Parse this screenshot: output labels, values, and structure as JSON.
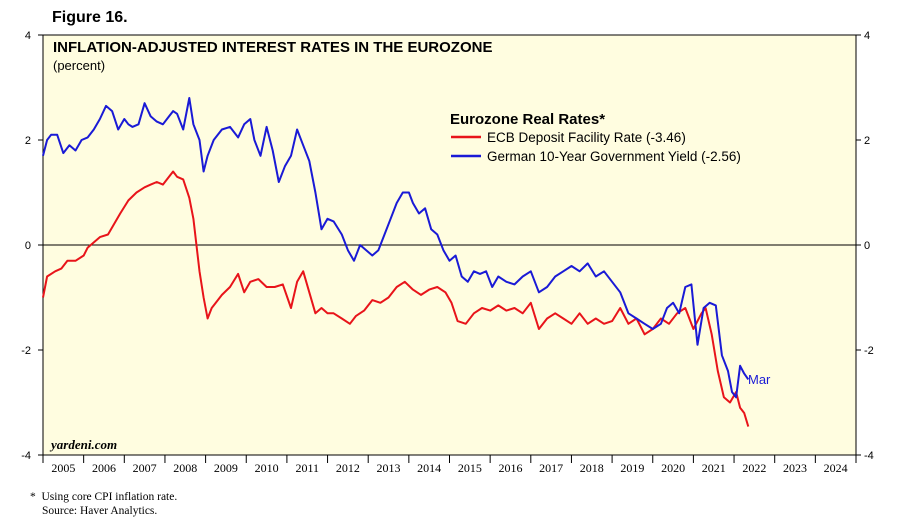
{
  "figure_label": "Figure 16.",
  "footnote": [
    "*  Using core CPI inflation rate.",
    "Source: Haver Analytics."
  ],
  "colors": {
    "ecb": "#e8141a",
    "german": "#1a1ad6",
    "background": "#fffde0"
  },
  "chart_data": {
    "type": "line",
    "title": "INFLATION-ADJUSTED INTEREST RATES IN THE EUROZONE",
    "subtitle": "(percent)",
    "legend_title": "Eurozone Real Rates*",
    "legend_position": "top-right",
    "watermark": "yardeni.com",
    "ylim": [
      -4,
      4
    ],
    "yticks": [
      4,
      2,
      0,
      -2,
      -4
    ],
    "xlim": [
      2004.9,
      2024.9
    ],
    "x_tick_labels": [
      "2005",
      "2006",
      "2007",
      "2008",
      "2009",
      "2010",
      "2011",
      "2012",
      "2013",
      "2014",
      "2015",
      "2016",
      "2017",
      "2018",
      "2019",
      "2020",
      "2021",
      "2022",
      "2023",
      "2024"
    ],
    "zero_line": true,
    "annotation": "Mar",
    "series": [
      {
        "name": "ECB Deposit Facility Rate (-3.46)",
        "color": "#e8141a",
        "x": [
          2004.9,
          2005.0,
          2005.2,
          2005.35,
          2005.5,
          2005.7,
          2005.9,
          2006.0,
          2006.15,
          2006.3,
          2006.5,
          2006.65,
          2006.8,
          2007.0,
          2007.2,
          2007.4,
          2007.55,
          2007.7,
          2007.85,
          2008.0,
          2008.1,
          2008.2,
          2008.35,
          2008.5,
          2008.6,
          2008.75,
          2008.85,
          2008.95,
          2009.05,
          2009.15,
          2009.3,
          2009.5,
          2009.7,
          2009.85,
          2010.0,
          2010.2,
          2010.4,
          2010.6,
          2010.8,
          2011.0,
          2011.15,
          2011.3,
          2011.45,
          2011.6,
          2011.75,
          2011.9,
          2012.05,
          2012.25,
          2012.45,
          2012.6,
          2012.8,
          2013.0,
          2013.2,
          2013.4,
          2013.6,
          2013.8,
          2014.0,
          2014.2,
          2014.4,
          2014.6,
          2014.8,
          2014.95,
          2015.1,
          2015.3,
          2015.5,
          2015.7,
          2015.9,
          2016.1,
          2016.3,
          2016.5,
          2016.7,
          2016.9,
          2017.1,
          2017.3,
          2017.5,
          2017.7,
          2017.9,
          2018.1,
          2018.3,
          2018.5,
          2018.7,
          2018.9,
          2019.1,
          2019.3,
          2019.5,
          2019.7,
          2019.9,
          2020.1,
          2020.3,
          2020.5,
          2020.7,
          2020.9,
          2021.1,
          2021.2,
          2021.35,
          2021.5,
          2021.65,
          2021.8,
          2021.95,
          2022.05,
          2022.15,
          2022.25
        ],
        "values": [
          -1.0,
          -0.6,
          -0.5,
          -0.45,
          -0.3,
          -0.3,
          -0.2,
          -0.05,
          0.05,
          0.15,
          0.2,
          0.4,
          0.6,
          0.85,
          1.0,
          1.1,
          1.15,
          1.2,
          1.15,
          1.3,
          1.4,
          1.3,
          1.25,
          0.9,
          0.5,
          -0.5,
          -1.0,
          -1.4,
          -1.2,
          -1.1,
          -0.95,
          -0.8,
          -0.55,
          -0.9,
          -0.7,
          -0.65,
          -0.8,
          -0.8,
          -0.75,
          -1.2,
          -0.7,
          -0.5,
          -0.9,
          -1.3,
          -1.2,
          -1.3,
          -1.3,
          -1.4,
          -1.5,
          -1.35,
          -1.25,
          -1.05,
          -1.1,
          -1.0,
          -0.8,
          -0.7,
          -0.85,
          -0.95,
          -0.85,
          -0.8,
          -0.9,
          -1.1,
          -1.45,
          -1.5,
          -1.3,
          -1.2,
          -1.25,
          -1.15,
          -1.25,
          -1.2,
          -1.3,
          -1.1,
          -1.6,
          -1.4,
          -1.3,
          -1.4,
          -1.5,
          -1.3,
          -1.5,
          -1.4,
          -1.5,
          -1.45,
          -1.2,
          -1.5,
          -1.4,
          -1.7,
          -1.6,
          -1.4,
          -1.5,
          -1.3,
          -1.2,
          -1.6,
          -1.3,
          -1.2,
          -1.7,
          -2.4,
          -2.9,
          -3.0,
          -2.8,
          -3.1,
          -3.2,
          -3.46
        ]
      },
      {
        "name": "German 10-Year Government Yield (-2.56)",
        "color": "#1a1ad6",
        "x": [
          2004.9,
          2005.0,
          2005.1,
          2005.25,
          2005.4,
          2005.55,
          2005.7,
          2005.85,
          2006.0,
          2006.15,
          2006.3,
          2006.45,
          2006.6,
          2006.75,
          2006.9,
          2007.0,
          2007.1,
          2007.25,
          2007.4,
          2007.55,
          2007.7,
          2007.85,
          2008.0,
          2008.1,
          2008.2,
          2008.35,
          2008.5,
          2008.6,
          2008.75,
          2008.85,
          2008.95,
          2009.1,
          2009.3,
          2009.5,
          2009.7,
          2009.85,
          2010.0,
          2010.1,
          2010.25,
          2010.4,
          2010.55,
          2010.7,
          2010.85,
          2011.0,
          2011.15,
          2011.3,
          2011.45,
          2011.6,
          2011.75,
          2011.9,
          2012.05,
          2012.25,
          2012.4,
          2012.55,
          2012.7,
          2012.85,
          2013.0,
          2013.15,
          2013.3,
          2013.45,
          2013.6,
          2013.75,
          2013.9,
          2014.0,
          2014.15,
          2014.3,
          2014.45,
          2014.6,
          2014.75,
          2014.9,
          2015.05,
          2015.2,
          2015.35,
          2015.5,
          2015.65,
          2015.8,
          2015.95,
          2016.1,
          2016.3,
          2016.5,
          2016.7,
          2016.9,
          2017.1,
          2017.3,
          2017.5,
          2017.7,
          2017.9,
          2018.1,
          2018.3,
          2018.5,
          2018.7,
          2018.9,
          2019.1,
          2019.3,
          2019.5,
          2019.7,
          2019.9,
          2020.1,
          2020.25,
          2020.4,
          2020.55,
          2020.7,
          2020.85,
          2021.0,
          2021.15,
          2021.3,
          2021.45,
          2021.6,
          2021.75,
          2021.85,
          2021.95,
          2022.05,
          2022.15,
          2022.25
        ],
        "values": [
          1.7,
          2.0,
          2.1,
          2.1,
          1.75,
          1.9,
          1.8,
          2.0,
          2.05,
          2.2,
          2.4,
          2.65,
          2.55,
          2.2,
          2.4,
          2.3,
          2.25,
          2.3,
          2.7,
          2.45,
          2.35,
          2.3,
          2.45,
          2.55,
          2.5,
          2.2,
          2.8,
          2.3,
          2.0,
          1.4,
          1.7,
          2.0,
          2.2,
          2.25,
          2.05,
          2.3,
          2.4,
          2.0,
          1.7,
          2.25,
          1.8,
          1.2,
          1.5,
          1.7,
          2.2,
          1.9,
          1.6,
          1.0,
          0.3,
          0.5,
          0.45,
          0.2,
          -0.1,
          -0.3,
          0.0,
          -0.1,
          -0.2,
          -0.1,
          0.2,
          0.5,
          0.8,
          1.0,
          1.0,
          0.8,
          0.6,
          0.7,
          0.3,
          0.2,
          -0.1,
          -0.3,
          -0.2,
          -0.6,
          -0.7,
          -0.5,
          -0.55,
          -0.5,
          -0.8,
          -0.6,
          -0.7,
          -0.75,
          -0.6,
          -0.5,
          -0.9,
          -0.8,
          -0.6,
          -0.5,
          -0.4,
          -0.5,
          -0.35,
          -0.6,
          -0.5,
          -0.7,
          -0.9,
          -1.3,
          -1.4,
          -1.5,
          -1.6,
          -1.5,
          -1.2,
          -1.1,
          -1.3,
          -0.8,
          -0.75,
          -1.9,
          -1.2,
          -1.1,
          -1.15,
          -2.1,
          -2.4,
          -2.8,
          -2.9,
          -2.3,
          -2.45,
          -2.56
        ]
      }
    ]
  }
}
